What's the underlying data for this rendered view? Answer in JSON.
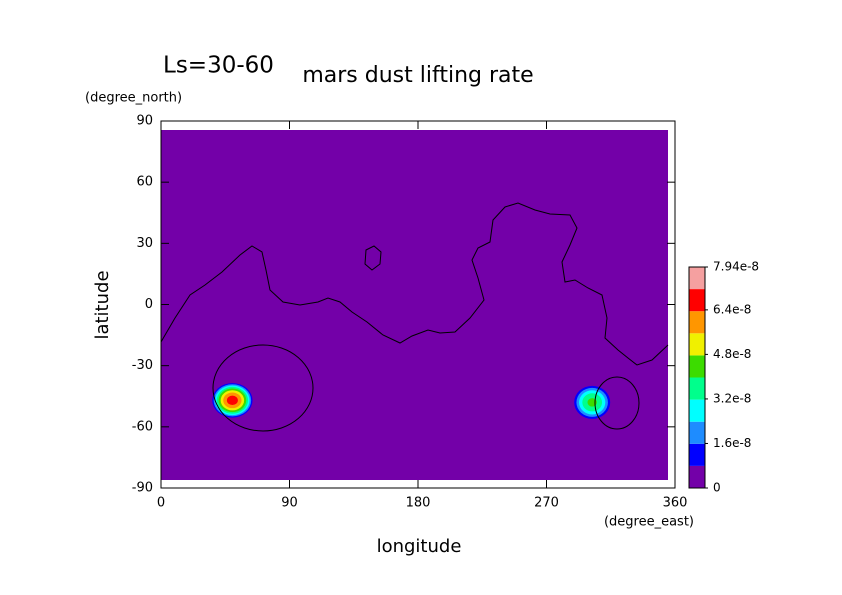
{
  "chart_data": {
    "type": "contour",
    "title": "mars dust lifting rate",
    "subtitle": "Ls=30-60",
    "x_label": "longitude",
    "x_unit": "(degree_east)",
    "y_label": "latitude",
    "y_unit": "(degree_north)",
    "xlim": [
      0,
      360
    ],
    "xticks": [
      0,
      90,
      180,
      270,
      360
    ],
    "ylim": [
      -90,
      90
    ],
    "yticks": [
      -90,
      -60,
      -30,
      0,
      30,
      60,
      90
    ],
    "sources": {
      "lon": [
        50,
        302
      ],
      "lat": [
        -47,
        -48
      ],
      "values": [
        6.8e-08,
        4.2e-08
      ],
      "lon_spread": [
        15,
        14
      ],
      "lat_spread": [
        9,
        9
      ]
    },
    "colorbar": {
      "clim": [
        0,
        7.94e-08
      ],
      "colors": [
        "#7300a8",
        "#0000ff",
        "#1e8cff",
        "#00ffff",
        "#00ff8c",
        "#3cdc00",
        "#f0f000",
        "#ff9600",
        "#ff0000",
        "#f5a0a0"
      ],
      "ticks": [
        {
          "value": 0,
          "label": "0"
        },
        {
          "value": 1.6e-08,
          "label": "1.6e-8"
        },
        {
          "value": 3.2e-08,
          "label": "3.2e-8"
        },
        {
          "value": 4.8e-08,
          "label": "4.8e-8"
        },
        {
          "value": 6.4e-08,
          "label": "6.4e-8"
        },
        {
          "value": 7.94e-08,
          "label": "7.94e-8"
        }
      ]
    }
  }
}
